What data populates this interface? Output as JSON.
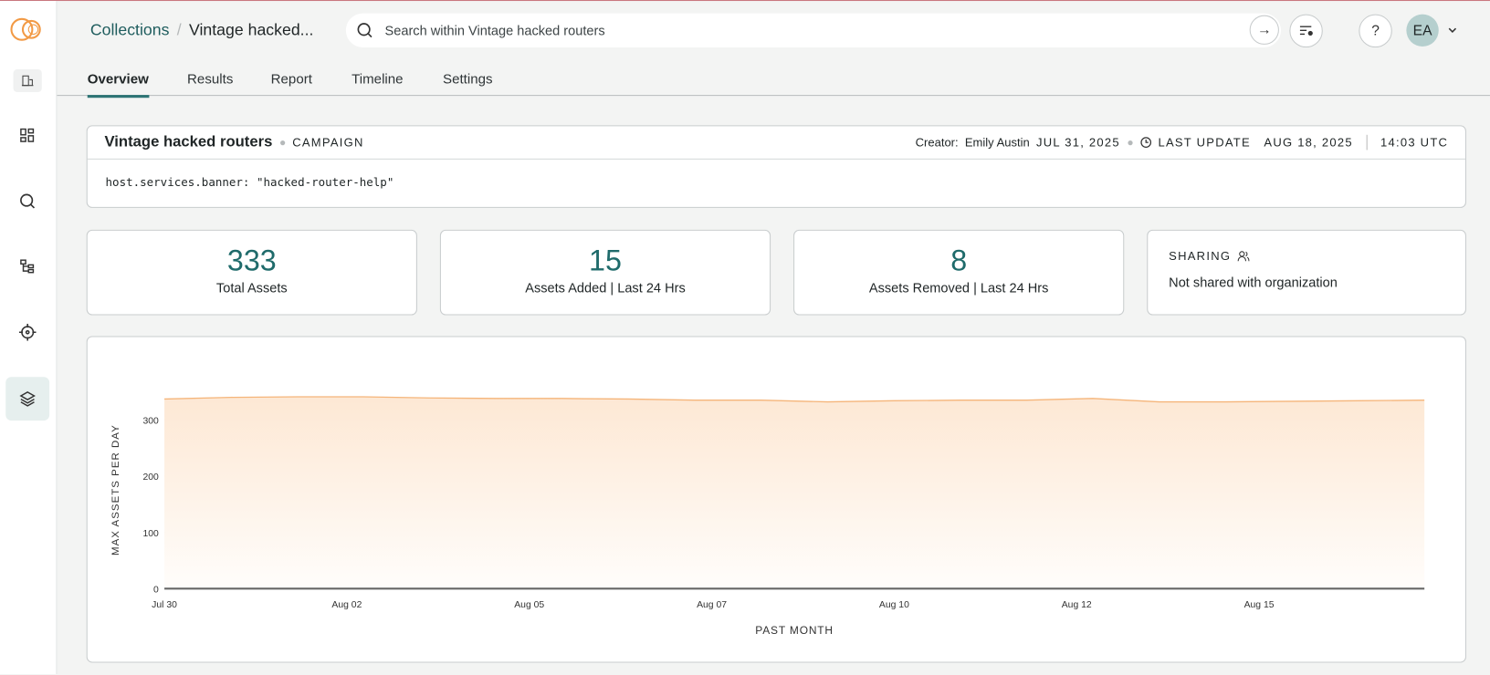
{
  "breadcrumb": {
    "root": "Collections",
    "current": "Vintage hacked..."
  },
  "search": {
    "placeholder": "Search within Vintage hacked routers"
  },
  "user": {
    "initials": "EA"
  },
  "help_label": "?",
  "tabs": [
    {
      "label": "Overview",
      "active": true
    },
    {
      "label": "Results"
    },
    {
      "label": "Report"
    },
    {
      "label": "Timeline"
    },
    {
      "label": "Settings"
    }
  ],
  "collection": {
    "title": "Vintage hacked routers",
    "type": "CAMPAIGN",
    "creator_label": "Creator:",
    "creator": "Emily Austin",
    "created": "JUL 31, 2025",
    "last_update_label": "LAST UPDATE",
    "last_update_date": "AUG 18, 2025",
    "last_update_time": "14:03 UTC",
    "query": "host.services.banner: \"hacked-router-help\""
  },
  "stats": [
    {
      "value": "333",
      "label": "Total Assets"
    },
    {
      "value": "15",
      "label": "Assets Added | Last 24 Hrs"
    },
    {
      "value": "8",
      "label": "Assets Removed | Last 24 Hrs"
    }
  ],
  "sharing": {
    "label": "SHARING",
    "value": "Not shared with organization"
  },
  "colors": {
    "accent": "#1f6b6b",
    "chart_line": "#f5b57a",
    "chart_fill": "#fde8d4"
  },
  "chart_data": {
    "type": "area",
    "xlabel": "PAST MONTH",
    "ylabel": "MAX ASSETS PER DAY",
    "ylim": [
      0,
      400
    ],
    "yticks": [
      0,
      100,
      200,
      300
    ],
    "xticks": [
      "Jul 30",
      "Aug 02",
      "Aug 05",
      "Aug 07",
      "Aug 10",
      "Aug 12",
      "Aug 15"
    ],
    "grid": true,
    "x": [
      "Jul 30",
      "Jul 31",
      "Aug 01",
      "Aug 02",
      "Aug 03",
      "Aug 04",
      "Aug 05",
      "Aug 06",
      "Aug 07",
      "Aug 08",
      "Aug 09",
      "Aug 10",
      "Aug 11",
      "Aug 12",
      "Aug 13",
      "Aug 14",
      "Aug 15",
      "Aug 16",
      "Aug 17",
      "Aug 18"
    ],
    "values": [
      337,
      340,
      341,
      341,
      339,
      338,
      338,
      337,
      335,
      335,
      332,
      334,
      335,
      335,
      338,
      332,
      332,
      333,
      334,
      335
    ]
  }
}
